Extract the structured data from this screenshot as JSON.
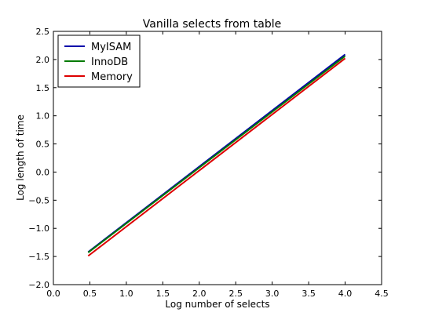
{
  "chart_data": {
    "type": "line",
    "title": "Vanilla selects from table",
    "xlabel": "Log number of selects",
    "ylabel": "Log length of time",
    "xlim": [
      0.0,
      4.5
    ],
    "ylim": [
      -2.0,
      2.5
    ],
    "xticks": [
      0.0,
      0.5,
      1.0,
      1.5,
      2.0,
      2.5,
      3.0,
      3.5,
      4.0,
      4.5
    ],
    "xtick_labels": [
      "0.0",
      "0.5",
      "1.0",
      "1.5",
      "2.0",
      "2.5",
      "3.0",
      "3.5",
      "4.0",
      "4.5"
    ],
    "yticks": [
      -2.0,
      -1.5,
      -1.0,
      -0.5,
      0.0,
      0.5,
      1.0,
      1.5,
      2.0,
      2.5
    ],
    "ytick_labels": [
      "−2.0",
      "−1.5",
      "−1.0",
      "−0.5",
      "0.0",
      "0.5",
      "1.0",
      "1.5",
      "2.0",
      "2.5"
    ],
    "grid": false,
    "legend_position": "top-left",
    "series": [
      {
        "name": "MyISAM",
        "color": "#0000aa",
        "x": [
          0.477,
          4.0
        ],
        "y": [
          -1.42,
          2.09
        ]
      },
      {
        "name": "InnoDB",
        "color": "#007a00",
        "x": [
          0.477,
          4.0
        ],
        "y": [
          -1.43,
          2.06
        ]
      },
      {
        "name": "Memory",
        "color": "#dd0000",
        "x": [
          0.477,
          4.0
        ],
        "y": [
          -1.49,
          2.02
        ]
      }
    ]
  }
}
